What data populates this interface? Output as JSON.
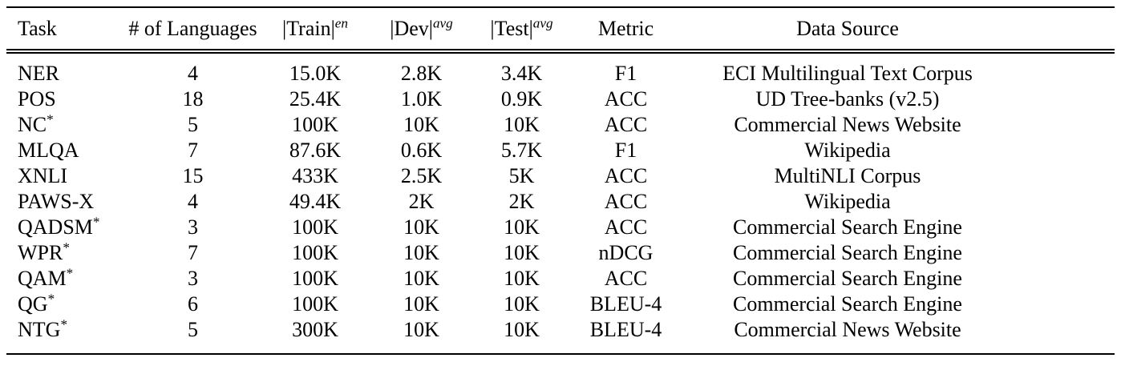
{
  "table": {
    "columns": [
      {
        "label": "Task",
        "align": "left"
      },
      {
        "label": "# of Languages"
      },
      {
        "label": "|Train|",
        "sup": "en",
        "sup_italic": true
      },
      {
        "label": "|Dev|",
        "sup": "avg",
        "sup_italic": true
      },
      {
        "label": "|Test|",
        "sup": "avg",
        "sup_italic": true
      },
      {
        "label": "Metric"
      },
      {
        "label": "Data Source"
      }
    ],
    "rows": [
      {
        "task": "NER",
        "task_sup": "",
        "languages": "4",
        "train": "15.0K",
        "dev": "2.8K",
        "test": "3.4K",
        "metric": "F1",
        "source": "ECI Multilingual Text Corpus"
      },
      {
        "task": "POS",
        "task_sup": "",
        "languages": "18",
        "train": "25.4K",
        "dev": "1.0K",
        "test": "0.9K",
        "metric": "ACC",
        "source": "UD Tree-banks (v2.5)"
      },
      {
        "task": "NC",
        "task_sup": "*",
        "languages": "5",
        "train": "100K",
        "dev": "10K",
        "test": "10K",
        "metric": "ACC",
        "source": "Commercial News Website"
      },
      {
        "task": "MLQA",
        "task_sup": "",
        "languages": "7",
        "train": "87.6K",
        "dev": "0.6K",
        "test": "5.7K",
        "metric": "F1",
        "source": "Wikipedia"
      },
      {
        "task": "XNLI",
        "task_sup": "",
        "languages": "15",
        "train": "433K",
        "dev": "2.5K",
        "test": "5K",
        "metric": "ACC",
        "source": "MultiNLI Corpus"
      },
      {
        "task": "PAWS-X",
        "task_sup": "",
        "languages": "4",
        "train": "49.4K",
        "dev": "2K",
        "test": "2K",
        "metric": "ACC",
        "source": "Wikipedia"
      },
      {
        "task": "QADSM",
        "task_sup": "*",
        "languages": "3",
        "train": "100K",
        "dev": "10K",
        "test": "10K",
        "metric": "ACC",
        "source": "Commercial Search Engine"
      },
      {
        "task": "WPR",
        "task_sup": "*",
        "languages": "7",
        "train": "100K",
        "dev": "10K",
        "test": "10K",
        "metric": "nDCG",
        "source": "Commercial Search Engine"
      },
      {
        "task": "QAM",
        "task_sup": "*",
        "languages": "3",
        "train": "100K",
        "dev": "10K",
        "test": "10K",
        "metric": "ACC",
        "source": "Commercial Search Engine"
      },
      {
        "task": "QG",
        "task_sup": "*",
        "languages": "6",
        "train": "100K",
        "dev": "10K",
        "test": "10K",
        "metric": "BLEU-4",
        "source": "Commercial Search Engine"
      },
      {
        "task": "NTG",
        "task_sup": "*",
        "languages": "5",
        "train": "300K",
        "dev": "10K",
        "test": "10K",
        "metric": "BLEU-4",
        "source": "Commercial News Website"
      }
    ]
  }
}
